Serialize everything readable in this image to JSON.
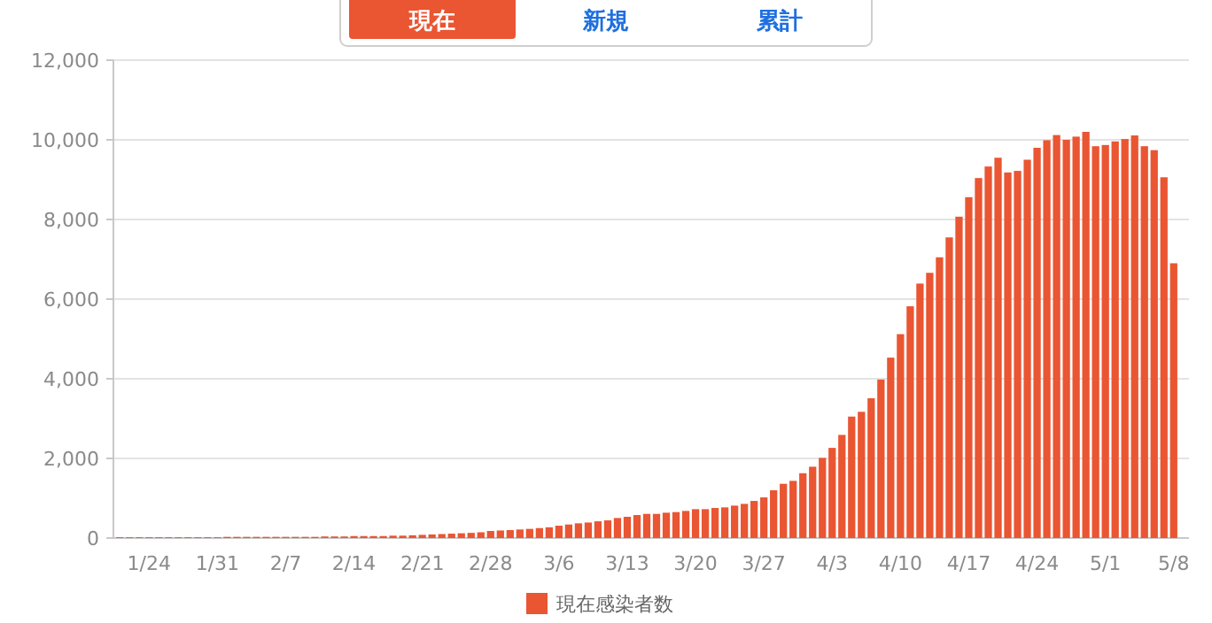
{
  "chart_data": {
    "type": "bar",
    "annotations": [
      "現在",
      "新規",
      "累計"
    ],
    "categories": [
      null,
      null,
      null,
      "1/24",
      null,
      null,
      null,
      null,
      null,
      null,
      "1/31",
      null,
      null,
      null,
      null,
      null,
      null,
      "2/7",
      null,
      null,
      null,
      null,
      null,
      null,
      "2/14",
      null,
      null,
      null,
      null,
      null,
      null,
      "2/21",
      null,
      null,
      null,
      null,
      null,
      null,
      "2/28",
      null,
      null,
      null,
      null,
      null,
      null,
      "3/6",
      null,
      null,
      null,
      null,
      null,
      null,
      "3/13",
      null,
      null,
      null,
      null,
      null,
      null,
      "3/20",
      null,
      null,
      null,
      null,
      null,
      null,
      "3/27",
      null,
      null,
      null,
      null,
      null,
      null,
      "4/3",
      null,
      null,
      null,
      null,
      null,
      null,
      "4/10",
      null,
      null,
      null,
      null,
      null,
      null,
      "4/17",
      null,
      null,
      null,
      null,
      null,
      null,
      "4/24",
      null,
      null,
      null,
      null,
      null,
      null,
      "5/1",
      null,
      null,
      null,
      null,
      null,
      null,
      "5/8"
    ],
    "series": [
      {
        "name": "現在感染者数",
        "color": "#ea5532",
        "values": [
          20,
          20,
          20,
          20,
          20,
          20,
          20,
          20,
          20,
          20,
          20,
          30,
          30,
          30,
          30,
          30,
          30,
          30,
          30,
          30,
          30,
          40,
          40,
          40,
          50,
          50,
          50,
          50,
          60,
          60,
          70,
          80,
          90,
          100,
          110,
          120,
          130,
          145,
          178,
          190,
          200,
          215,
          230,
          250,
          270,
          310,
          340,
          370,
          390,
          420,
          444,
          503,
          533,
          577,
          607,
          607,
          636,
          651,
          681,
          725,
          725,
          755,
          770,
          814,
          858,
          932,
          1021,
          1199,
          1362,
          1436,
          1628,
          1791,
          2013,
          2264,
          2590,
          3050,
          3170,
          3510,
          3980,
          4530,
          5120,
          5820,
          6390,
          6660,
          7050,
          7550,
          8070,
          8560,
          9040,
          9330,
          9550,
          9180,
          9220,
          9500,
          9800,
          9990,
          10120,
          10000,
          10080,
          10200,
          9840,
          9870,
          9960,
          10020,
          10110,
          9840,
          9740,
          9060,
          6900
        ]
      }
    ],
    "ylim": [
      0,
      12000
    ],
    "yticks": [
      0,
      {
        "value": 2000,
        "label": "2,000"
      },
      {
        "value": 4000,
        "label": "4,000"
      },
      {
        "value": 6000,
        "label": "6,000"
      },
      {
        "value": 8000,
        "label": "8,000"
      },
      {
        "value": 10000,
        "label": "10,000"
      },
      {
        "value": 12000,
        "label": "12,000"
      }
    ],
    "grid": "y",
    "legend": "bottom"
  }
}
